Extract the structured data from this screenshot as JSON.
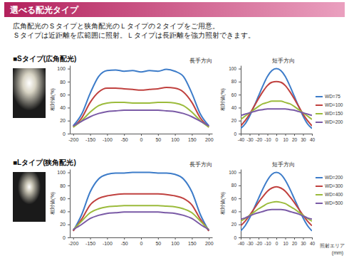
{
  "header": {
    "title": "選べる配光タイプ",
    "lines": [
      "広角配光のＳタイプと狭角配光のＬタイプの２タイプをご用意。",
      "Ｓタイプは近距離を広範囲に照射。Ｌタイプは長距離を強力照射できます。"
    ]
  },
  "sections": [
    "■Sタイプ(広角配光)",
    "■Lタイプ(狭角配光)"
  ],
  "chart_data": [
    {
      "type": "line",
      "title": "長手方向",
      "ylabel": "相対値(%)",
      "x": [
        -200,
        -175,
        -150,
        -125,
        -100,
        -75,
        -50,
        -25,
        0,
        25,
        50,
        75,
        100,
        125,
        150,
        175,
        200
      ],
      "xlim": [
        -210,
        210
      ],
      "xticks": [
        -200,
        -150,
        -100,
        -50,
        0,
        50,
        100,
        150,
        200
      ],
      "ylim": [
        0,
        105
      ],
      "yticks": [
        0,
        20,
        40,
        60,
        80,
        100
      ],
      "grid": false,
      "series": [
        {
          "color": "#3d7cc9",
          "values": [
            12,
            30,
            62,
            88,
            97,
            98,
            96,
            97,
            95,
            97,
            96,
            99,
            96,
            88,
            62,
            30,
            12
          ]
        },
        {
          "color": "#c0413f",
          "values": [
            10,
            24,
            48,
            64,
            70,
            70,
            69,
            68,
            67,
            68,
            69,
            71,
            70,
            64,
            48,
            24,
            10
          ]
        },
        {
          "color": "#9bbb3b",
          "values": [
            10,
            20,
            33,
            43,
            47,
            48,
            48,
            47,
            47,
            47,
            48,
            48,
            47,
            43,
            33,
            20,
            10
          ]
        },
        {
          "color": "#7a5aa6",
          "values": [
            12,
            19,
            26,
            31,
            34,
            35,
            36,
            36,
            36,
            36,
            36,
            35,
            34,
            31,
            26,
            19,
            12
          ]
        }
      ]
    },
    {
      "type": "line",
      "title": "短手方向",
      "ylabel": "相対値(%)",
      "legend": "right",
      "x": [
        -40,
        -35,
        -30,
        -25,
        -20,
        -15,
        -10,
        -5,
        0,
        5,
        10,
        15,
        20,
        25,
        30,
        35,
        40
      ],
      "xlim": [
        -40,
        40
      ],
      "xticks": [
        -40,
        -30,
        -20,
        -10,
        0,
        10,
        20,
        30,
        40
      ],
      "ylim": [
        0,
        105
      ],
      "yticks": [
        0,
        20,
        40,
        60,
        80,
        100
      ],
      "grid": false,
      "series": [
        {
          "name": "WD=75",
          "color": "#3d7cc9",
          "values": [
            8,
            15,
            27,
            42,
            58,
            74,
            88,
            97,
            100,
            97,
            88,
            74,
            58,
            42,
            27,
            15,
            8
          ]
        },
        {
          "name": "WD=100",
          "color": "#c0413f",
          "values": [
            12,
            20,
            30,
            42,
            54,
            65,
            74,
            79,
            80,
            79,
            74,
            65,
            54,
            42,
            30,
            20,
            12
          ]
        },
        {
          "name": "WD=150",
          "color": "#9bbb3b",
          "values": [
            22,
            27,
            32,
            37,
            42,
            46,
            48,
            50,
            50,
            50,
            48,
            46,
            42,
            37,
            32,
            27,
            22
          ]
        },
        {
          "name": "WD=200",
          "color": "#7a5aa6",
          "values": [
            28,
            30,
            32,
            34,
            36,
            37,
            38,
            38,
            38,
            38,
            38,
            37,
            36,
            34,
            32,
            30,
            28
          ]
        }
      ]
    },
    {
      "type": "line",
      "title": "長手方向",
      "ylabel": "相対値(%)",
      "x": [
        -200,
        -175,
        -150,
        -125,
        -100,
        -75,
        -50,
        -25,
        0,
        25,
        50,
        75,
        100,
        125,
        150,
        175,
        200
      ],
      "xlim": [
        -210,
        210
      ],
      "xticks": [
        -200,
        -150,
        -100,
        -50,
        0,
        50,
        100,
        150,
        200
      ],
      "ylim": [
        0,
        105
      ],
      "yticks": [
        0,
        20,
        40,
        60,
        80,
        100
      ],
      "grid": false,
      "series": [
        {
          "color": "#3d7cc9",
          "values": [
            10,
            35,
            70,
            90,
            97,
            99,
            99,
            100,
            100,
            100,
            99,
            99,
            97,
            90,
            70,
            35,
            10
          ]
        },
        {
          "color": "#c0413f",
          "values": [
            10,
            28,
            50,
            60,
            64,
            66,
            67,
            67,
            67,
            67,
            67,
            66,
            64,
            60,
            50,
            28,
            10
          ]
        },
        {
          "color": "#9bbb3b",
          "values": [
            12,
            25,
            38,
            44,
            47,
            48,
            49,
            49,
            49,
            49,
            49,
            48,
            47,
            44,
            38,
            25,
            12
          ]
        },
        {
          "color": "#7a5aa6",
          "values": [
            12,
            20,
            29,
            34,
            37,
            38,
            39,
            39,
            39,
            39,
            39,
            38,
            37,
            34,
            29,
            20,
            12
          ]
        }
      ]
    },
    {
      "type": "line",
      "title": "短手方向",
      "ylabel": "相対値(%)",
      "xlabel": "照射エリア(mm)",
      "legend": "right",
      "x": [
        -40,
        -35,
        -30,
        -25,
        -20,
        -15,
        -10,
        -5,
        0,
        5,
        10,
        15,
        20,
        25,
        30,
        35,
        40
      ],
      "xlim": [
        -40,
        40
      ],
      "xticks": [
        -40,
        -30,
        -20,
        -10,
        0,
        10,
        20,
        30,
        40
      ],
      "ylim": [
        0,
        105
      ],
      "yticks": [
        0,
        20,
        40,
        60,
        80,
        100
      ],
      "grid": false,
      "series": [
        {
          "name": "WD=200",
          "color": "#3d7cc9",
          "values": [
            10,
            18,
            30,
            45,
            60,
            75,
            88,
            97,
            100,
            97,
            88,
            75,
            60,
            45,
            30,
            18,
            10
          ]
        },
        {
          "name": "WD=300",
          "color": "#c0413f",
          "values": [
            18,
            25,
            34,
            44,
            54,
            63,
            71,
            76,
            78,
            76,
            71,
            63,
            54,
            44,
            34,
            25,
            18
          ]
        },
        {
          "name": "WD=400",
          "color": "#9bbb3b",
          "values": [
            25,
            29,
            34,
            39,
            44,
            48,
            52,
            54,
            55,
            54,
            52,
            48,
            44,
            39,
            34,
            29,
            25
          ]
        },
        {
          "name": "WD=500",
          "color": "#7a5aa6",
          "values": [
            28,
            30,
            33,
            36,
            38,
            40,
            42,
            43,
            43,
            43,
            42,
            40,
            38,
            36,
            33,
            30,
            28
          ]
        }
      ]
    }
  ]
}
